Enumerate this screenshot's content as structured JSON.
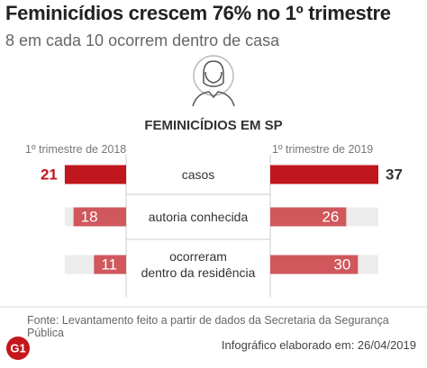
{
  "chart_data": {
    "type": "butterfly-bar",
    "title": "Feminicídios crescem 76% no 1º trimestre",
    "subtitle": "8 em cada 10 ocorrem dentro de casa",
    "section_title": "FEMINICÍDIOS EM SP",
    "categories": [
      "casos",
      "autoria conhecida",
      "ocorreram\ndentro da residência"
    ],
    "colors": [
      "#c0161d",
      "#d0575c",
      "#d0575c"
    ],
    "series": [
      {
        "name": "1º trimestre de 2018",
        "values": [
          21,
          18,
          11
        ]
      },
      {
        "name": "1º trimestre de 2019",
        "values": [
          37,
          26,
          30
        ]
      }
    ],
    "source": "Fonte: Levantamento feito a partir de dados da Secretaria da Segurança Pública",
    "logo": "G1",
    "credit": "Infográfico elaborado em: 26/04/2019"
  }
}
